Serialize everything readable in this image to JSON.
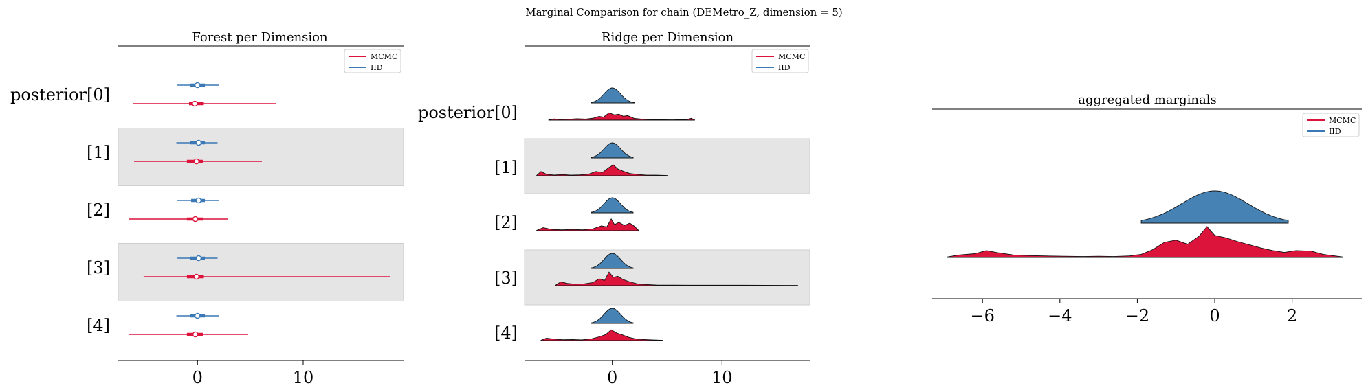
{
  "figure": {
    "suptitle": "Marginal Comparison for chain (DEMetro_Z, dimension = 5)"
  },
  "colors": {
    "mcmc": "#dc143c",
    "iid": "#3a78b6",
    "iid_fill": "#4682b4",
    "band": "#e5e5e5"
  },
  "chart_data": [
    {
      "type": "forest",
      "title": "Forest per Dimension",
      "row_labels": [
        "posterior[0]",
        "[1]",
        "[2]",
        "[3]",
        "[4]"
      ],
      "shaded_rows": [
        1,
        3
      ],
      "x_ticks": [
        0,
        10
      ],
      "xlim": [
        -7.5,
        19.5
      ],
      "legend": {
        "placement": "top-right",
        "entries": [
          "MCMC",
          "IID"
        ]
      },
      "series": [
        {
          "name": "MCMC",
          "color": "#dc143c",
          "points": [
            {
              "row": 0,
              "min": -6.1,
              "q25": -0.8,
              "median": -0.25,
              "q75": 0.6,
              "max": 7.4
            },
            {
              "row": 1,
              "min": -6.0,
              "q25": -1.0,
              "median": -0.1,
              "q75": 0.5,
              "max": 6.1
            },
            {
              "row": 2,
              "min": -6.5,
              "q25": -1.0,
              "median": -0.2,
              "q75": 0.5,
              "max": 2.9
            },
            {
              "row": 3,
              "min": -5.1,
              "q25": -1.0,
              "median": -0.1,
              "q75": 0.6,
              "max": 18.2
            },
            {
              "row": 4,
              "min": -6.5,
              "q25": -1.0,
              "median": -0.2,
              "q75": 0.5,
              "max": 4.8
            }
          ]
        },
        {
          "name": "IID",
          "color": "#3a78b6",
          "points": [
            {
              "row": 0,
              "min": -1.9,
              "q25": -0.7,
              "median": 0.0,
              "q75": 0.7,
              "max": 2.0
            },
            {
              "row": 1,
              "min": -2.0,
              "q25": -0.7,
              "median": 0.1,
              "q75": 0.7,
              "max": 1.9
            },
            {
              "row": 2,
              "min": -1.9,
              "q25": -0.6,
              "median": 0.1,
              "q75": 0.7,
              "max": 2.0
            },
            {
              "row": 3,
              "min": -1.9,
              "q25": -0.7,
              "median": 0.1,
              "q75": 0.7,
              "max": 1.9
            },
            {
              "row": 4,
              "min": -2.0,
              "q25": -0.7,
              "median": 0.0,
              "q75": 0.7,
              "max": 2.0
            }
          ]
        }
      ]
    },
    {
      "type": "ridge",
      "title": "Ridge per Dimension",
      "row_labels": [
        "posterior[0]",
        "[1]",
        "[2]",
        "[3]",
        "[4]"
      ],
      "shaded_rows": [
        1,
        3
      ],
      "x_ticks": [
        0,
        10
      ],
      "xlim": [
        -8.0,
        18.0
      ],
      "legend": {
        "placement": "top-right",
        "entries": [
          "MCMC",
          "IID"
        ]
      },
      "series": [
        {
          "name": "MCMC",
          "color": "#dc143c",
          "rows": [
            {
              "row": 0,
              "min": -5.8,
              "max": 7.5,
              "density": [
                [
                  -5.8,
                  0.02
                ],
                [
                  -5.3,
                  0.08
                ],
                [
                  -4.8,
                  0.05
                ],
                [
                  -4.0,
                  0.06
                ],
                [
                  -3.2,
                  0.09
                ],
                [
                  -2.4,
                  0.07
                ],
                [
                  -1.7,
                  0.14
                ],
                [
                  -1.2,
                  0.25
                ],
                [
                  -0.8,
                  0.2
                ],
                [
                  -0.3,
                  0.48
                ],
                [
                  0.2,
                  0.35
                ],
                [
                  0.6,
                  0.4
                ],
                [
                  1.0,
                  0.26
                ],
                [
                  1.4,
                  0.3
                ],
                [
                  2.0,
                  0.12
                ],
                [
                  2.8,
                  0.06
                ],
                [
                  4.0,
                  0.03
                ],
                [
                  5.5,
                  0.02
                ],
                [
                  6.8,
                  0.04
                ],
                [
                  7.2,
                  0.12
                ],
                [
                  7.5,
                  0.02
                ]
              ]
            },
            {
              "row": 1,
              "min": -6.9,
              "max": 5.0,
              "density": [
                [
                  -6.9,
                  0.02
                ],
                [
                  -6.5,
                  0.28
                ],
                [
                  -6.0,
                  0.1
                ],
                [
                  -5.3,
                  0.05
                ],
                [
                  -4.5,
                  0.08
                ],
                [
                  -3.8,
                  0.04
                ],
                [
                  -3.0,
                  0.06
                ],
                [
                  -2.2,
                  0.1
                ],
                [
                  -1.5,
                  0.28
                ],
                [
                  -0.9,
                  0.22
                ],
                [
                  -0.3,
                  0.55
                ],
                [
                  0.1,
                  0.72
                ],
                [
                  0.5,
                  0.45
                ],
                [
                  1.0,
                  0.3
                ],
                [
                  1.6,
                  0.15
                ],
                [
                  2.2,
                  0.1
                ],
                [
                  3.0,
                  0.05
                ],
                [
                  4.0,
                  0.04
                ],
                [
                  5.0,
                  0.02
                ]
              ]
            },
            {
              "row": 2,
              "min": -6.9,
              "max": 2.4,
              "density": [
                [
                  -6.9,
                  0.02
                ],
                [
                  -6.3,
                  0.2
                ],
                [
                  -5.5,
                  0.08
                ],
                [
                  -4.6,
                  0.06
                ],
                [
                  -3.6,
                  0.08
                ],
                [
                  -2.7,
                  0.06
                ],
                [
                  -1.8,
                  0.12
                ],
                [
                  -1.0,
                  0.32
                ],
                [
                  -0.5,
                  0.25
                ],
                [
                  -0.1,
                  0.78
                ],
                [
                  0.2,
                  0.4
                ],
                [
                  0.6,
                  0.55
                ],
                [
                  1.1,
                  0.35
                ],
                [
                  1.6,
                  0.5
                ],
                [
                  2.0,
                  0.3
                ],
                [
                  2.4,
                  0.02
                ]
              ]
            },
            {
              "row": 3,
              "min": -5.2,
              "max": 16.9,
              "density": [
                [
                  -5.2,
                  0.02
                ],
                [
                  -4.7,
                  0.25
                ],
                [
                  -4.1,
                  0.15
                ],
                [
                  -3.4,
                  0.1
                ],
                [
                  -2.6,
                  0.12
                ],
                [
                  -1.8,
                  0.2
                ],
                [
                  -1.2,
                  0.45
                ],
                [
                  -0.7,
                  0.35
                ],
                [
                  -0.3,
                  0.9
                ],
                [
                  0.1,
                  0.55
                ],
                [
                  0.5,
                  0.62
                ],
                [
                  1.0,
                  0.4
                ],
                [
                  1.6,
                  0.25
                ],
                [
                  2.4,
                  0.1
                ],
                [
                  4.0,
                  0.04
                ],
                [
                  7.0,
                  0.03
                ],
                [
                  12.0,
                  0.03
                ],
                [
                  16.9,
                  0.02
                ]
              ]
            },
            {
              "row": 4,
              "min": -6.5,
              "max": 4.6,
              "density": [
                [
                  -6.5,
                  0.02
                ],
                [
                  -6.0,
                  0.16
                ],
                [
                  -5.3,
                  0.1
                ],
                [
                  -4.5,
                  0.06
                ],
                [
                  -3.6,
                  0.07
                ],
                [
                  -2.8,
                  0.05
                ],
                [
                  -1.9,
                  0.12
                ],
                [
                  -1.2,
                  0.25
                ],
                [
                  -0.6,
                  0.4
                ],
                [
                  -0.1,
                  0.72
                ],
                [
                  0.4,
                  0.5
                ],
                [
                  0.9,
                  0.38
                ],
                [
                  1.5,
                  0.22
                ],
                [
                  2.2,
                  0.1
                ],
                [
                  3.2,
                  0.06
                ],
                [
                  4.6,
                  0.02
                ]
              ]
            }
          ]
        },
        {
          "name": "IID",
          "color": "#4682b4",
          "rows": [
            {
              "row": 0,
              "min": -1.9,
              "max": 2.0,
              "sd": 0.75
            },
            {
              "row": 1,
              "min": -1.9,
              "max": 1.9,
              "sd": 0.75
            },
            {
              "row": 2,
              "min": -1.9,
              "max": 1.9,
              "sd": 0.75
            },
            {
              "row": 3,
              "min": -1.9,
              "max": 1.9,
              "sd": 0.75
            },
            {
              "row": 4,
              "min": -1.9,
              "max": 1.9,
              "sd": 0.75
            }
          ]
        }
      ]
    },
    {
      "type": "ridge",
      "title": "aggregated marginals",
      "x_ticks": [
        -6,
        -4,
        -2,
        0,
        2
      ],
      "xlim": [
        -7.3,
        3.8
      ],
      "legend": {
        "placement": "top-right",
        "entries": [
          "MCMC",
          "IID"
        ]
      },
      "series": [
        {
          "name": "MCMC",
          "color": "#dc143c",
          "min": -6.9,
          "max": 3.3,
          "density": [
            [
              -6.9,
              0.02
            ],
            [
              -6.6,
              0.08
            ],
            [
              -6.2,
              0.12
            ],
            [
              -5.9,
              0.22
            ],
            [
              -5.6,
              0.15
            ],
            [
              -5.2,
              0.08
            ],
            [
              -4.8,
              0.06
            ],
            [
              -4.4,
              0.05
            ],
            [
              -3.9,
              0.04
            ],
            [
              -3.4,
              0.03
            ],
            [
              -3.0,
              0.04
            ],
            [
              -2.6,
              0.03
            ],
            [
              -2.2,
              0.05
            ],
            [
              -1.9,
              0.1
            ],
            [
              -1.6,
              0.25
            ],
            [
              -1.3,
              0.48
            ],
            [
              -1.0,
              0.55
            ],
            [
              -0.7,
              0.42
            ],
            [
              -0.4,
              0.68
            ],
            [
              -0.2,
              0.98
            ],
            [
              0.0,
              0.7
            ],
            [
              0.3,
              0.62
            ],
            [
              0.6,
              0.5
            ],
            [
              0.9,
              0.4
            ],
            [
              1.2,
              0.3
            ],
            [
              1.5,
              0.22
            ],
            [
              1.8,
              0.16
            ],
            [
              2.1,
              0.22
            ],
            [
              2.5,
              0.2
            ],
            [
              2.8,
              0.1
            ],
            [
              3.1,
              0.05
            ],
            [
              3.3,
              0.02
            ]
          ]
        },
        {
          "name": "IID",
          "color": "#4682b4",
          "min": -1.9,
          "max": 1.9,
          "sd": 0.85
        }
      ]
    }
  ]
}
